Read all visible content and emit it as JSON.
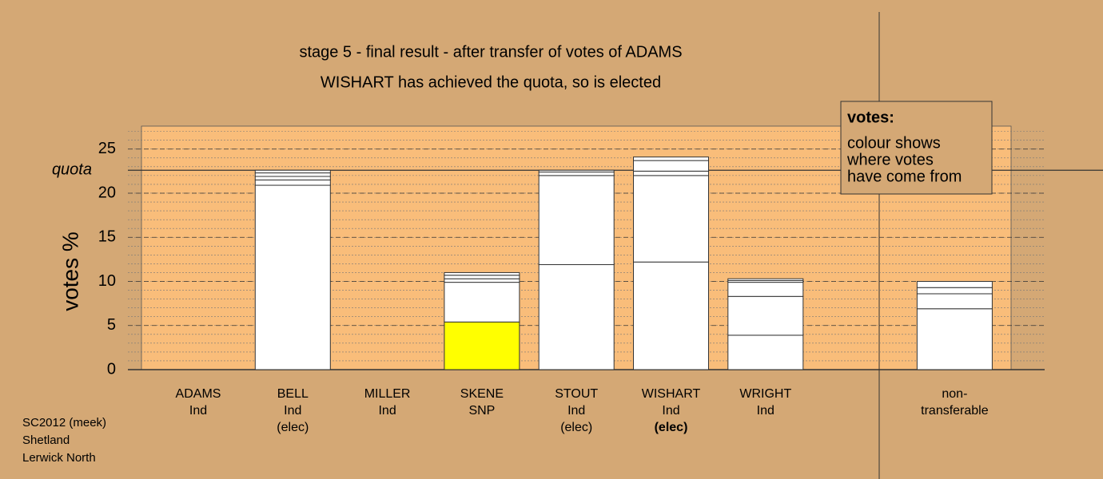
{
  "chart_data": {
    "type": "stacked-bar",
    "title": "stage 5 - final result - after transfer of votes of ADAMS",
    "subtitle": "WISHART has achieved the quota, so is elected",
    "y_label": "votes %",
    "categories": [
      [
        "ADAMS",
        "Ind"
      ],
      [
        "BELL",
        "Ind",
        "(elec)"
      ],
      [
        "MILLER",
        "Ind"
      ],
      [
        "SKENE",
        "SNP"
      ],
      [
        "STOUT",
        "Ind",
        "(elec)"
      ],
      [
        "WISHART",
        "Ind",
        "(elec)"
      ],
      [
        "WRIGHT",
        "Ind"
      ],
      null,
      [
        "non-",
        "transferable"
      ]
    ],
    "series": [
      {
        "values": [
          0,
          20.9,
          0,
          5.4,
          11.9,
          12.2,
          3.9,
          null,
          6.9
        ],
        "colors": [
          "#ffffff",
          "#ffffff",
          "#ffffff",
          "#ffff00",
          "#ffffff",
          "#ffffff",
          "#ffffff",
          "#ffffff",
          "#ffffff"
        ]
      },
      {
        "values": [
          null,
          0.6,
          null,
          4.5,
          10.1,
          9.8,
          4.4,
          null,
          1.7
        ],
        "color": "#ffffff"
      },
      {
        "values": [
          null,
          0.4,
          null,
          0.4,
          0.4,
          0.5,
          1.6,
          null,
          0.7
        ],
        "color": "#ffffff"
      },
      {
        "values": [
          null,
          0.4,
          null,
          0.4,
          0.2,
          1.2,
          0.2,
          null,
          0.7
        ],
        "color": "#ffffff"
      },
      {
        "values": [
          null,
          0.3,
          null,
          0.3,
          null,
          0.4,
          0.2,
          null,
          null
        ],
        "color": "#ffffff"
      }
    ],
    "ylim": [
      0,
      27.6
    ],
    "yticks": [
      0,
      5,
      10,
      15,
      20,
      25
    ],
    "minor_step": 1,
    "quota": 22.6,
    "quota_label": "quota",
    "note": {
      "heading": "votes:",
      "lines": [
        "colour shows",
        "where votes",
        "have come from"
      ]
    },
    "footer": [
      "SC2012 (meek)",
      "Shetland",
      "Lerwick North"
    ]
  }
}
